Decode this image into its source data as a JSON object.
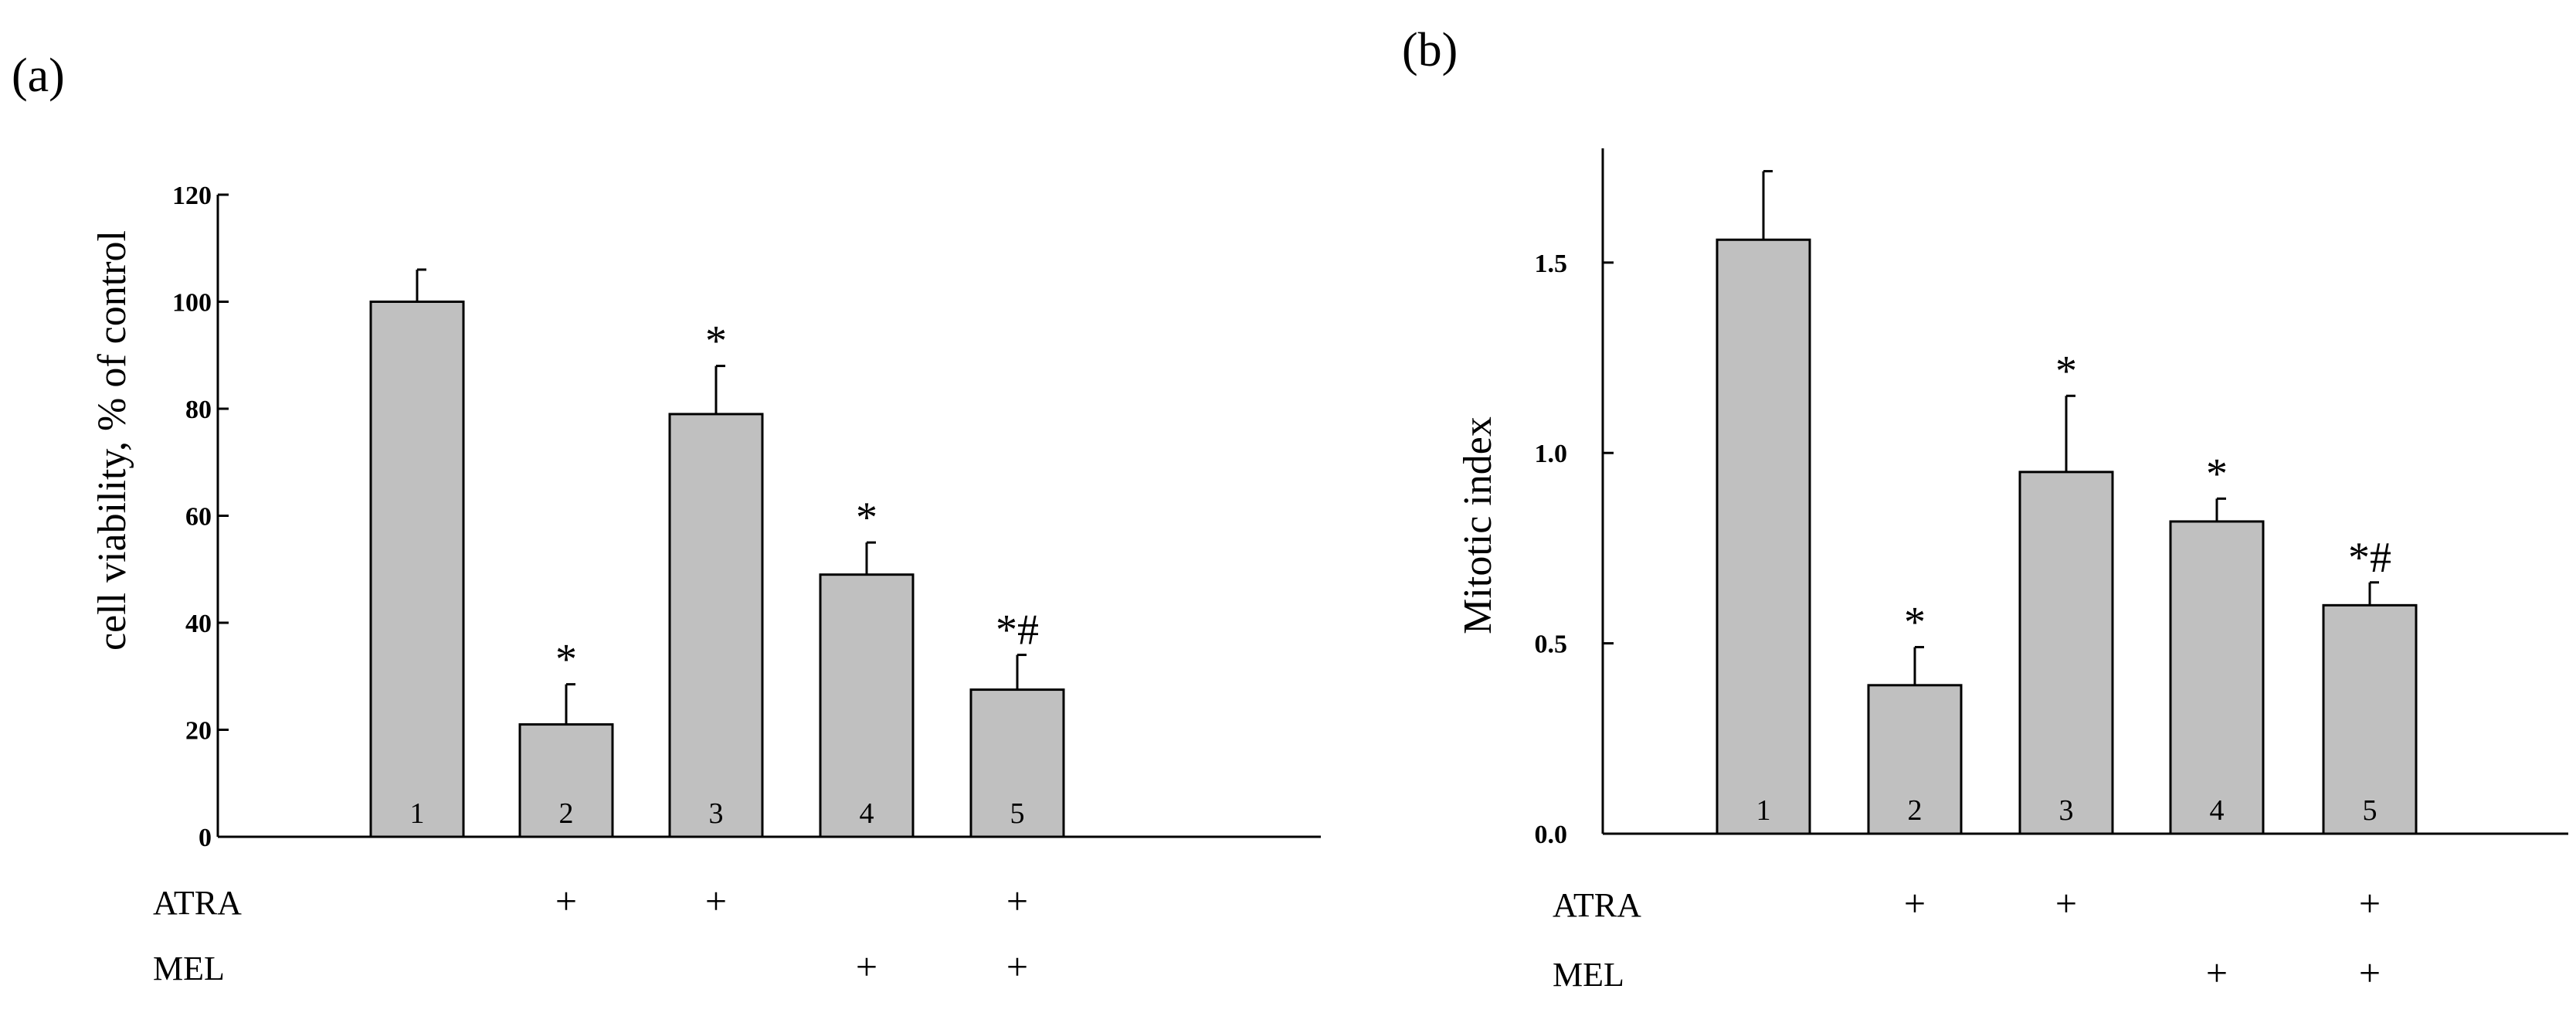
{
  "chart_data": [
    {
      "type": "bar",
      "panel_label": "(a)",
      "title": "",
      "xlabel": "",
      "ylabel": "cell viability,  % of control",
      "ylim": [
        0,
        120
      ],
      "yticks": [
        0,
        20,
        40,
        60,
        80,
        100,
        120
      ],
      "ytick_labels": [
        "0",
        "20",
        "40",
        "60",
        "80",
        "100",
        "120"
      ],
      "categories": [
        "1",
        "2",
        "3",
        "4",
        "5"
      ],
      "values": [
        100,
        21,
        79,
        49,
        27.5
      ],
      "errors": [
        6,
        7.5,
        9,
        6,
        6.5
      ],
      "significance": [
        "",
        "*",
        "*",
        "*",
        "*#"
      ],
      "bar_color": "#c0c0c0",
      "treatments": [
        {
          "name": "ATRA",
          "marks": [
            "",
            "+",
            "+",
            "",
            "+"
          ]
        },
        {
          "name": "MEL",
          "marks": [
            "",
            "",
            "",
            "+",
            "+"
          ]
        }
      ]
    },
    {
      "type": "bar",
      "panel_label": "(b)",
      "title": "",
      "xlabel": "",
      "ylabel": "Mitotic  index",
      "ylim": [
        0,
        1.8
      ],
      "yticks": [
        0,
        0.5,
        1.0,
        1.5
      ],
      "ytick_labels": [
        "0.0",
        "0.5",
        "1.0",
        "1.5"
      ],
      "categories": [
        "1",
        "2",
        "3",
        "4",
        "5"
      ],
      "values": [
        1.56,
        0.39,
        0.95,
        0.82,
        0.6
      ],
      "errors": [
        0.18,
        0.1,
        0.2,
        0.06,
        0.06
      ],
      "significance": [
        "",
        "*",
        "*",
        "*",
        "*#"
      ],
      "bar_color": "#c0c0c0",
      "treatments": [
        {
          "name": "ATRA",
          "marks": [
            "",
            "+",
            "+",
            "",
            "+"
          ]
        },
        {
          "name": "MEL",
          "marks": [
            "",
            "",
            "",
            "+",
            "+"
          ]
        }
      ]
    }
  ]
}
